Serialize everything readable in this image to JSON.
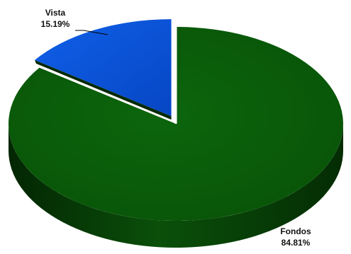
{
  "chart_data": {
    "type": "pie",
    "title": "",
    "slices": [
      {
        "label": "Vista",
        "percent": 15.19,
        "percent_label": "15.19%",
        "color": "#0a52d9",
        "exploded": true
      },
      {
        "label": "Fondos",
        "percent": 84.81,
        "percent_label": "84.81%",
        "color": "#0b5d0b",
        "exploded": false
      }
    ],
    "legend": "none",
    "three_d": true,
    "data_labels": "outside with leader line"
  }
}
